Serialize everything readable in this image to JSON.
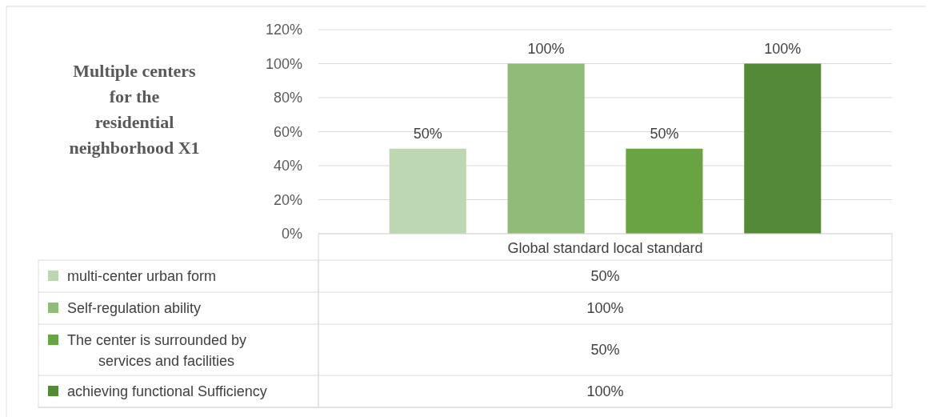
{
  "chart_data": {
    "type": "bar",
    "title": "Multiple centers for the residential neighborhood X1",
    "categories": [
      "Global standard local standard"
    ],
    "series": [
      {
        "name": "multi-center urban form",
        "color": "#bdd7b3",
        "values": [
          50
        ],
        "value_labels": [
          "50%"
        ]
      },
      {
        "name": "Self-regulation ability",
        "color": "#91bb79",
        "values": [
          100
        ],
        "value_labels": [
          "100%"
        ]
      },
      {
        "name": "The center is surrounded by services and facilities",
        "color": "#69a442",
        "values": [
          50
        ],
        "value_labels": [
          "50%"
        ]
      },
      {
        "name": "achieving functional Sufficiency",
        "color": "#548936",
        "values": [
          100
        ],
        "value_labels": [
          "100%"
        ]
      }
    ],
    "ylim": [
      0,
      120
    ],
    "yticks": [
      {
        "value": 0,
        "label": "0%"
      },
      {
        "value": 20,
        "label": "20%"
      },
      {
        "value": 40,
        "label": "40%"
      },
      {
        "value": 60,
        "label": "60%"
      },
      {
        "value": 80,
        "label": "80%"
      },
      {
        "value": 100,
        "label": "100%"
      },
      {
        "value": 120,
        "label": "120%"
      }
    ],
    "grid": "y",
    "legend": "bottom"
  }
}
